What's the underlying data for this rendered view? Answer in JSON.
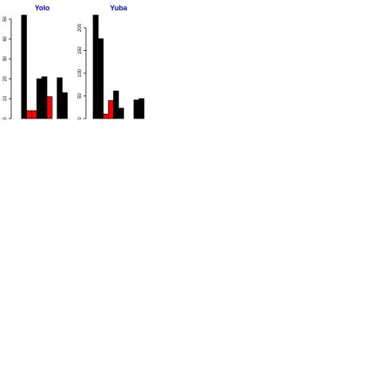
{
  "colors": {
    "title": "#0000cc",
    "bar_default": "#000000",
    "bar_highlight": "#ff0000"
  },
  "chart_data": [
    {
      "type": "bar",
      "title": "Yolo",
      "xlabel": "",
      "ylabel": "",
      "ylim": [
        0,
        52
      ],
      "yticks": [
        0,
        10,
        20,
        30,
        40,
        50
      ],
      "values": [
        52,
        4,
        4,
        20,
        21,
        11,
        0,
        20.5,
        13
      ],
      "bar_colors": [
        "#000000",
        "#ff0000",
        "#ff0000",
        "#000000",
        "#000000",
        "#ff0000",
        "#000000",
        "#000000",
        "#000000"
      ],
      "grid": false,
      "legend": "none"
    },
    {
      "type": "bar",
      "title": "Yuba",
      "xlabel": "",
      "ylabel": "",
      "ylim": [
        0,
        228
      ],
      "yticks": [
        0,
        50,
        100,
        150,
        200
      ],
      "values": [
        228,
        176,
        10,
        40,
        61,
        23,
        0,
        0,
        41,
        44
      ],
      "bar_colors": [
        "#000000",
        "#000000",
        "#ff0000",
        "#ff0000",
        "#000000",
        "#000000",
        "#000000",
        "#000000",
        "#000000",
        "#000000"
      ],
      "grid": false,
      "legend": "none"
    }
  ]
}
